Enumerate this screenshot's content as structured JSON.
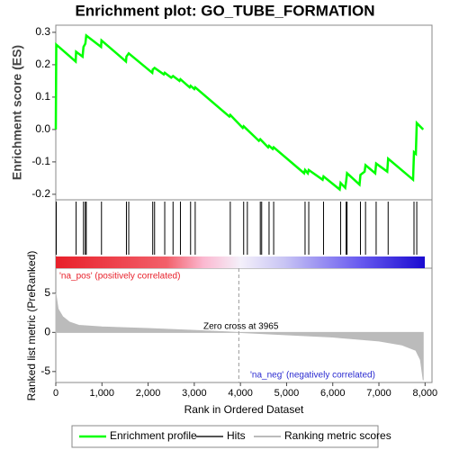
{
  "chart_data": {
    "type": "gsea",
    "title": "Enrichment plot: GO_TUBE_FORMATION",
    "ylabel": "Enrichment score (ES)",
    "y2label": "Ranked list metric (PreRanked)",
    "xlabel": "Rank in Ordered Dataset",
    "xlim": [
      0,
      8150
    ],
    "xticks": [
      0,
      {
        "value": 1000,
        "label": "1,000"
      },
      {
        "value": 2000,
        "label": "2,000"
      },
      {
        "value": 3000,
        "label": "3,000"
      },
      {
        "value": 4000,
        "label": "4,000"
      },
      {
        "value": 5000,
        "label": "5,000"
      },
      {
        "value": 6000,
        "label": "6,000"
      },
      {
        "value": 7000,
        "label": "7,000"
      },
      {
        "value": 8000,
        "label": "8,000"
      }
    ],
    "ylim": [
      -0.217,
      0.322
    ],
    "yticks": [
      -0.2,
      -0.1,
      {
        "value": 0,
        "label": "0.0"
      },
      0.1,
      0.2,
      0.3
    ],
    "y2lim": [
      -6.4,
      8.2
    ],
    "y2ticks": [
      -5,
      0,
      5
    ],
    "series": [
      {
        "name": "Enrichment profile",
        "color": "#00ff00",
        "x": [
          0,
          10,
          430,
          440,
          580,
          600,
          640,
          660,
          980,
          990,
          1520,
          1530,
          1580,
          2090,
          2100,
          2140,
          2340,
          2360,
          2500,
          2540,
          2680,
          2700,
          2900,
          2920,
          3000,
          3020,
          3760,
          3780,
          4050,
          4070,
          4400,
          4430,
          4600,
          4620,
          4700,
          4720,
          5380,
          5400,
          5460,
          5480,
          5780,
          5800,
          6150,
          6170,
          6270,
          6290,
          6310,
          6580,
          6600,
          6690,
          6710,
          6920,
          6940,
          7180,
          7200,
          7740,
          7760,
          7800,
          7820,
          7960
        ],
        "values": [
          0,
          0.262,
          0.21,
          0.24,
          0.225,
          0.255,
          0.265,
          0.29,
          0.255,
          0.275,
          0.21,
          0.225,
          0.235,
          0.175,
          0.185,
          0.19,
          0.17,
          0.175,
          0.16,
          0.165,
          0.15,
          0.155,
          0.13,
          0.135,
          0.125,
          0.13,
          0.04,
          0.045,
          0.005,
          0.01,
          -0.035,
          -0.03,
          -0.055,
          -0.05,
          -0.06,
          -0.055,
          -0.135,
          -0.125,
          -0.135,
          -0.125,
          -0.155,
          -0.145,
          -0.185,
          -0.165,
          -0.18,
          -0.16,
          -0.135,
          -0.17,
          -0.14,
          -0.13,
          -0.11,
          -0.135,
          -0.105,
          -0.13,
          -0.09,
          -0.155,
          -0.07,
          -0.075,
          0.02,
          0
        ]
      },
      {
        "name": "Hits",
        "color": "#555555",
        "x": [
          10,
          440,
          600,
          640,
          660,
          990,
          1530,
          1580,
          2100,
          2140,
          2360,
          2540,
          2700,
          2920,
          3020,
          3780,
          4070,
          4150,
          4430,
          4460,
          4620,
          4720,
          5400,
          5480,
          5800,
          6170,
          6290,
          6310,
          6600,
          6710,
          6940,
          7200,
          7760,
          7820
        ]
      },
      {
        "name": "Ranking metric scores",
        "color": "#bbbbbb",
        "axis": "y2",
        "x": [
          0,
          50,
          150,
          300,
          500,
          1000,
          2000,
          3000,
          3965,
          5000,
          6000,
          7000,
          7500,
          7800,
          7900,
          7960
        ],
        "values": [
          5,
          3,
          2,
          1.3,
          0.9,
          0.7,
          0.5,
          0.25,
          0,
          -0.3,
          -0.6,
          -1.1,
          -1.6,
          -2.3,
          -3.5,
          -6.1
        ]
      }
    ],
    "zero_cross": 3965,
    "annotations": [
      "'na_pos' (positively correlated)",
      "Zero cross at 3965",
      "'na_neg' (negatively correlated)"
    ]
  }
}
